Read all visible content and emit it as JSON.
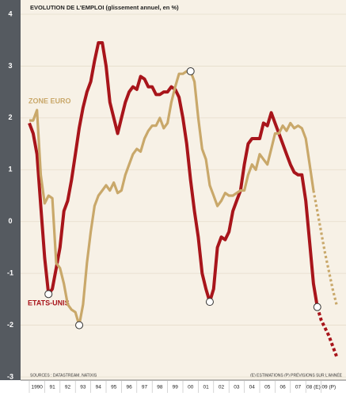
{
  "chart_data": {
    "type": "line",
    "title": "EVOLUTION DE L'EMPLOI (glissement annuel, en %)",
    "source": "SOURCES : DATASTREAM, NATIXIS",
    "note": "(E) ESTIMATIONS  (P) PRÉVISIONS SUR L'ANNÉE",
    "x": [
      1990,
      1990.25,
      1990.5,
      1990.75,
      1991,
      1991.25,
      1991.5,
      1991.75,
      1992,
      1992.25,
      1992.5,
      1992.75,
      1993,
      1993.25,
      1993.5,
      1993.75,
      1994,
      1994.25,
      1994.5,
      1994.75,
      1995,
      1995.25,
      1995.5,
      1995.75,
      1996,
      1996.25,
      1996.5,
      1996.75,
      1997,
      1997.25,
      1997.5,
      1997.75,
      1998,
      1998.25,
      1998.5,
      1998.75,
      1999,
      1999.25,
      1999.5,
      1999.75,
      2000,
      2000.25,
      2000.5,
      2000.75,
      2001,
      2001.25,
      2001.5,
      2001.75,
      2002,
      2002.25,
      2002.5,
      2002.75,
      2003,
      2003.25,
      2003.5,
      2003.75,
      2004,
      2004.25,
      2004.5,
      2004.75,
      2005,
      2005.25,
      2005.5,
      2005.75,
      2006,
      2006.25,
      2006.5,
      2006.75,
      2007,
      2007.25,
      2007.5,
      2007.75,
      2008,
      2008.25,
      2008.5,
      2008.75,
      2009,
      2009.25,
      2009.5,
      2009.75,
      2010
    ],
    "series": [
      {
        "name": "ETATS-UNIS",
        "color": "#a8151b",
        "dashed_from": 75,
        "markers": [
          5,
          47,
          75
        ],
        "values": [
          1.9,
          1.7,
          1.3,
          0.3,
          -0.7,
          -1.4,
          -1.3,
          -0.9,
          -0.5,
          0.2,
          0.4,
          0.8,
          1.3,
          1.8,
          2.2,
          2.5,
          2.7,
          3.1,
          3.45,
          3.45,
          3.0,
          2.3,
          2.0,
          1.7,
          2.0,
          2.3,
          2.5,
          2.6,
          2.55,
          2.8,
          2.75,
          2.6,
          2.6,
          2.45,
          2.45,
          2.5,
          2.5,
          2.6,
          2.55,
          2.4,
          2.0,
          1.5,
          0.8,
          0.2,
          -0.3,
          -1.0,
          -1.3,
          -1.55,
          -1.3,
          -0.5,
          -0.3,
          -0.35,
          -0.2,
          0.2,
          0.4,
          0.6,
          1.1,
          1.5,
          1.6,
          1.6,
          1.6,
          1.9,
          1.85,
          2.1,
          1.9,
          1.7,
          1.5,
          1.3,
          1.1,
          0.95,
          0.9,
          0.9,
          0.4,
          -0.4,
          -1.2,
          -1.65,
          -1.9,
          -2.05,
          -2.2,
          -2.4,
          -2.6
        ]
      },
      {
        "name": "ZONE EURO",
        "color": "#c9a86a",
        "dashed_from": 74,
        "markers": [
          13,
          42
        ],
        "values": [
          1.95,
          1.95,
          2.15,
          0.9,
          0.35,
          0.5,
          0.45,
          -0.8,
          -0.9,
          -1.2,
          -1.6,
          -1.7,
          -1.75,
          -2.0,
          -1.6,
          -0.8,
          -0.2,
          0.3,
          0.5,
          0.6,
          0.7,
          0.6,
          0.75,
          0.55,
          0.6,
          0.9,
          1.1,
          1.3,
          1.4,
          1.35,
          1.6,
          1.75,
          1.85,
          1.85,
          2.0,
          1.8,
          1.9,
          2.3,
          2.6,
          2.85,
          2.85,
          2.9,
          2.9,
          2.7,
          2.0,
          1.4,
          1.2,
          0.7,
          0.5,
          0.3,
          0.4,
          0.55,
          0.5,
          0.5,
          0.55,
          0.6,
          0.6,
          0.9,
          1.1,
          1.0,
          1.3,
          1.2,
          1.1,
          1.4,
          1.7,
          1.7,
          1.85,
          1.75,
          1.9,
          1.8,
          1.85,
          1.8,
          1.6,
          1.1,
          0.6,
          0.2,
          -0.2,
          -0.6,
          -0.95,
          -1.3,
          -1.6
        ]
      }
    ],
    "xlim": [
      1990,
      2010.5
    ],
    "xticks": [
      {
        "value": 1990.5,
        "label": "1990"
      },
      {
        "value": 1991.5,
        "label": "91"
      },
      {
        "value": 1992.5,
        "label": "92"
      },
      {
        "value": 1993.5,
        "label": "93"
      },
      {
        "value": 1994.5,
        "label": "94"
      },
      {
        "value": 1995.5,
        "label": "95"
      },
      {
        "value": 1996.5,
        "label": "96"
      },
      {
        "value": 1997.5,
        "label": "97"
      },
      {
        "value": 1998.5,
        "label": "98"
      },
      {
        "value": 1999.5,
        "label": "99"
      },
      {
        "value": 2000.5,
        "label": "00"
      },
      {
        "value": 2001.5,
        "label": "01"
      },
      {
        "value": 2002.5,
        "label": "02"
      },
      {
        "value": 2003.5,
        "label": "03"
      },
      {
        "value": 2004.5,
        "label": "04"
      },
      {
        "value": 2005.5,
        "label": "05"
      },
      {
        "value": 2006.5,
        "label": "06"
      },
      {
        "value": 2007.5,
        "label": "07"
      },
      {
        "value": 2008.5,
        "label": "08 (E)"
      },
      {
        "value": 2009.5,
        "label": "09 (P)"
      }
    ],
    "ylim": [
      -3,
      4
    ],
    "yticks": [
      -3,
      -2,
      -1,
      0,
      1,
      2,
      3,
      4
    ],
    "grid": true
  }
}
